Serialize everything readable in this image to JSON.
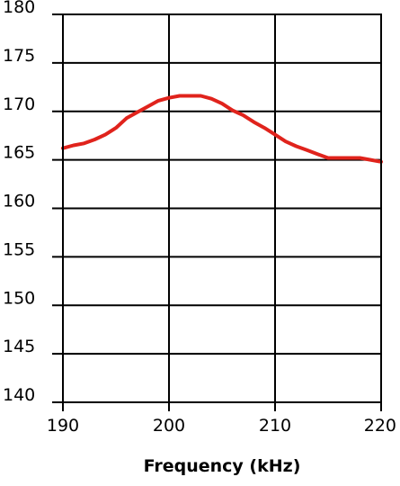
{
  "chart_data": {
    "type": "line",
    "title": "",
    "xlabel": "Frequency (kHz)",
    "ylabel": "",
    "xlim": [
      190,
      220
    ],
    "ylim": [
      140,
      180
    ],
    "xticks": [
      "190",
      "200",
      "210",
      "220"
    ],
    "yticks": [
      "140",
      "145",
      "150",
      "155",
      "160",
      "165",
      "170",
      "175",
      "180"
    ],
    "grid": true,
    "series": [
      {
        "color": "#e0231c",
        "x": [
          190,
          191,
          192,
          193,
          194,
          195,
          196,
          197,
          198,
          199,
          200,
          201,
          202,
          203,
          204,
          205,
          206,
          207,
          208,
          209,
          210,
          211,
          212,
          213,
          214,
          215,
          216,
          217,
          218,
          219,
          220
        ],
        "y": [
          166.2,
          166.5,
          166.7,
          167.1,
          167.6,
          168.3,
          169.3,
          169.9,
          170.5,
          171.1,
          171.4,
          171.6,
          171.6,
          171.6,
          171.3,
          170.8,
          170.1,
          169.6,
          168.9,
          168.3,
          167.6,
          166.9,
          166.4,
          166.0,
          165.6,
          165.2,
          165.2,
          165.2,
          165.2,
          165.0,
          164.8
        ]
      }
    ]
  }
}
